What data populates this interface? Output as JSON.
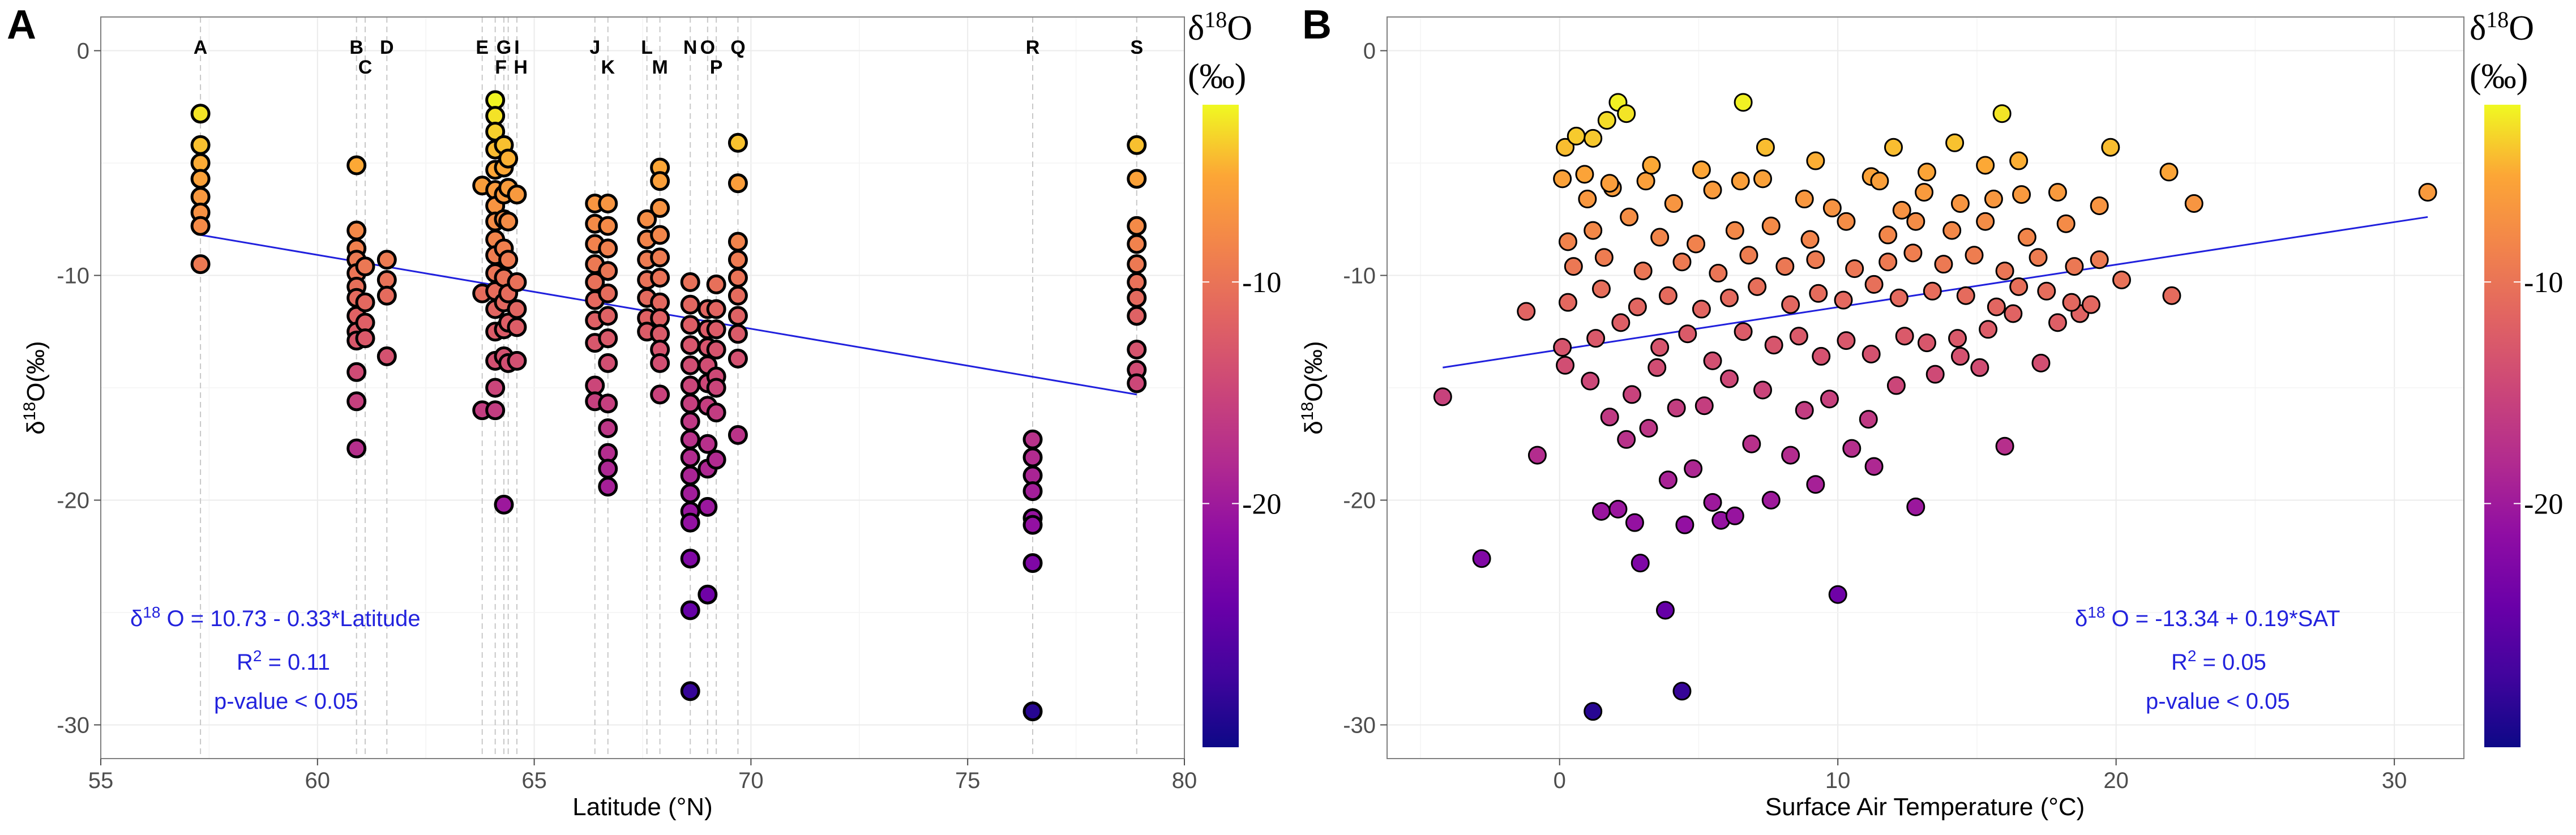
{
  "chart_data": [
    {
      "panel": "A",
      "type": "scatter",
      "xlabel": "Latitude (°N)",
      "ylabel": "δ18O(‰)",
      "xlim": [
        55,
        80
      ],
      "ylim": [
        -31.5,
        1.5
      ],
      "xticks": [
        55,
        60,
        65,
        70,
        75,
        80
      ],
      "yticks": [
        0,
        -10,
        -20,
        -30
      ],
      "colorbar": {
        "title": "δ18O",
        "unit": "(‰)",
        "range": [
          -31,
          -2
        ],
        "ticks": [
          -10,
          -20
        ]
      },
      "sites": [
        {
          "label": "A",
          "lat": 57.3,
          "values": [
            -2.8,
            -4.2,
            -5.0,
            -5.7,
            -6.5,
            -7.2,
            -7.8,
            -9.5
          ]
        },
        {
          "label": "B",
          "lat": 60.9,
          "values": [
            -5.1,
            -8.0,
            -8.8,
            -9.3,
            -9.9,
            -10.5,
            -11.0,
            -11.8,
            -12.5,
            -12.9,
            -14.3,
            -15.6,
            -17.7
          ]
        },
        {
          "label": "C",
          "lat": 61.1,
          "values": [
            -9.6,
            -11.2,
            -12.1,
            -12.8
          ]
        },
        {
          "label": "D",
          "lat": 61.6,
          "values": [
            -9.3,
            -10.2,
            -10.9,
            -13.6
          ]
        },
        {
          "label": "E",
          "lat": 63.8,
          "values": [
            -6.0,
            -10.8,
            -16.0
          ]
        },
        {
          "label": "F",
          "lat": 64.1,
          "values": [
            -2.2,
            -2.9,
            -3.6,
            -4.4,
            -5.3,
            -6.2,
            -6.9,
            -7.6,
            -8.4,
            -9.1,
            -9.9,
            -10.7,
            -11.5,
            -12.5,
            -13.8,
            -15.0,
            -16.0
          ]
        },
        {
          "label": "G",
          "lat": 64.3,
          "values": [
            -4.2,
            -5.2,
            -6.4,
            -7.5,
            -8.8,
            -10.1,
            -11.2,
            -12.4,
            -13.6,
            -20.2
          ]
        },
        {
          "label": "H",
          "lat": 64.4,
          "values": [
            -4.8,
            -6.1,
            -7.6,
            -9.3,
            -10.8,
            -12.1,
            -13.9
          ]
        },
        {
          "label": "I",
          "lat": 64.6,
          "values": [
            -6.4,
            -10.3,
            -11.5,
            -12.3,
            -13.8
          ]
        },
        {
          "label": "J",
          "lat": 66.4,
          "values": [
            -6.8,
            -7.7,
            -8.6,
            -9.5,
            -10.3,
            -11.1,
            -12.0,
            -13.0,
            -14.9,
            -15.6
          ]
        },
        {
          "label": "K",
          "lat": 66.7,
          "values": [
            -6.8,
            -7.8,
            -8.8,
            -9.8,
            -10.8,
            -11.8,
            -12.8,
            -13.9,
            -15.7,
            -16.8,
            -17.9,
            -18.6,
            -19.4
          ]
        },
        {
          "label": "L",
          "lat": 67.6,
          "values": [
            -7.5,
            -8.4,
            -9.3,
            -10.2,
            -11.0,
            -11.9,
            -12.5
          ]
        },
        {
          "label": "M",
          "lat": 67.9,
          "values": [
            -5.2,
            -5.8,
            -7.0,
            -8.2,
            -9.2,
            -10.1,
            -11.2,
            -11.9,
            -12.6,
            -13.3,
            -13.9,
            -15.3
          ]
        },
        {
          "label": "N",
          "lat": 68.6,
          "values": [
            -10.3,
            -11.3,
            -12.2,
            -13.1,
            -14.0,
            -14.9,
            -15.7,
            -16.5,
            -17.3,
            -18.1,
            -18.9,
            -19.7,
            -20.5,
            -21.0,
            -22.6,
            -24.9,
            -28.5
          ]
        },
        {
          "label": "O",
          "lat": 69.0,
          "values": [
            -11.5,
            -12.4,
            -13.2,
            -14.0,
            -14.8,
            -15.8,
            -17.5,
            -18.6,
            -20.3,
            -24.2
          ]
        },
        {
          "label": "P",
          "lat": 69.2,
          "values": [
            -10.4,
            -11.5,
            -12.4,
            -13.3,
            -14.5,
            -15.0,
            -16.1,
            -18.2
          ]
        },
        {
          "label": "Q",
          "lat": 69.7,
          "values": [
            -4.1,
            -5.9,
            -8.5,
            -9.3,
            -10.1,
            -10.9,
            -11.8,
            -12.6,
            -13.7,
            -17.1
          ]
        },
        {
          "label": "R",
          "lat": 76.5,
          "values": [
            -17.3,
            -18.1,
            -18.9,
            -19.6,
            -20.8,
            -21.1,
            -22.8,
            -29.4
          ]
        },
        {
          "label": "S",
          "lat": 78.9,
          "values": [
            -4.2,
            -5.7,
            -7.8,
            -8.6,
            -9.5,
            -10.3,
            -11.0,
            -11.8,
            -13.3,
            -14.2,
            -14.8
          ]
        }
      ],
      "regression": {
        "x": [
          57.3,
          78.9
        ],
        "y": [
          -8.2,
          -15.3
        ]
      },
      "annotations": [
        "δ18O = 10.73 - 0.33*Latitude",
        "R2 = 0.11",
        "p-value < 0.05"
      ]
    },
    {
      "panel": "B",
      "type": "scatter",
      "xlabel": "Surface Air Temperature (°C)",
      "ylabel": "δ18O(‰)",
      "xlim": [
        -6.2,
        32.5
      ],
      "ylim": [
        -31.5,
        1.5
      ],
      "xticks": [
        0,
        10,
        20,
        30
      ],
      "yticks": [
        0,
        -10,
        -20,
        -30
      ],
      "colorbar": {
        "title": "δ18O",
        "unit": "(‰)",
        "range": [
          -31,
          -2
        ],
        "ticks": [
          -10,
          -20
        ]
      },
      "regression": {
        "x": [
          -4.2,
          31.2
        ],
        "y": [
          -14.1,
          -7.4
        ]
      },
      "points": [
        [
          1.2,
          -29.4
        ],
        [
          4.4,
          -28.5
        ],
        [
          3.8,
          -24.9
        ],
        [
          10.0,
          -24.2
        ],
        [
          -2.8,
          -22.6
        ],
        [
          2.9,
          -22.8
        ],
        [
          -0.8,
          -18.0
        ],
        [
          1.5,
          -20.5
        ],
        [
          2.1,
          -20.4
        ],
        [
          2.7,
          -21.0
        ],
        [
          3.9,
          -19.1
        ],
        [
          4.5,
          -21.1
        ],
        [
          5.5,
          -20.1
        ],
        [
          5.8,
          -20.9
        ],
        [
          6.3,
          -20.7
        ],
        [
          7.6,
          -20.0
        ],
        [
          9.2,
          -19.3
        ],
        [
          12.8,
          -20.3
        ],
        [
          16.0,
          -17.6
        ],
        [
          1.8,
          -16.3
        ],
        [
          2.4,
          -17.3
        ],
        [
          3.2,
          -16.8
        ],
        [
          4.8,
          -18.6
        ],
        [
          6.9,
          -17.5
        ],
        [
          8.3,
          -18.0
        ],
        [
          10.5,
          -17.7
        ],
        [
          11.3,
          -18.5
        ],
        [
          -4.2,
          -15.4
        ],
        [
          0.2,
          -14.0
        ],
        [
          1.1,
          -14.7
        ],
        [
          2.6,
          -15.3
        ],
        [
          3.5,
          -14.1
        ],
        [
          4.2,
          -15.9
        ],
        [
          5.2,
          -15.8
        ],
        [
          6.1,
          -14.6
        ],
        [
          7.3,
          -15.1
        ],
        [
          8.8,
          -16.0
        ],
        [
          9.7,
          -15.5
        ],
        [
          11.1,
          -16.4
        ],
        [
          12.1,
          -14.9
        ],
        [
          13.5,
          -14.4
        ],
        [
          14.4,
          -13.6
        ],
        [
          15.1,
          -14.1
        ],
        [
          17.3,
          -13.9
        ],
        [
          0.1,
          -13.2
        ],
        [
          1.3,
          -12.8
        ],
        [
          2.2,
          -12.1
        ],
        [
          3.6,
          -13.2
        ],
        [
          4.6,
          -12.6
        ],
        [
          5.5,
          -13.8
        ],
        [
          6.6,
          -12.5
        ],
        [
          7.7,
          -13.1
        ],
        [
          8.6,
          -12.7
        ],
        [
          9.4,
          -13.6
        ],
        [
          10.3,
          -12.9
        ],
        [
          11.2,
          -13.5
        ],
        [
          12.4,
          -12.7
        ],
        [
          13.2,
          -13.0
        ],
        [
          14.3,
          -12.8
        ],
        [
          15.4,
          -12.4
        ],
        [
          16.3,
          -11.7
        ],
        [
          17.9,
          -12.1
        ],
        [
          18.7,
          -11.7
        ],
        [
          -1.2,
          -11.6
        ],
        [
          0.3,
          -11.2
        ],
        [
          1.5,
          -10.6
        ],
        [
          2.8,
          -11.4
        ],
        [
          3.9,
          -10.9
        ],
        [
          5.1,
          -11.5
        ],
        [
          6.1,
          -11.0
        ],
        [
          7.1,
          -10.5
        ],
        [
          8.3,
          -11.3
        ],
        [
          9.3,
          -10.8
        ],
        [
          10.2,
          -11.1
        ],
        [
          11.3,
          -10.4
        ],
        [
          12.2,
          -11.0
        ],
        [
          13.4,
          -10.7
        ],
        [
          14.6,
          -10.9
        ],
        [
          15.7,
          -11.4
        ],
        [
          16.5,
          -10.5
        ],
        [
          17.5,
          -10.7
        ],
        [
          18.4,
          -11.2
        ],
        [
          19.1,
          -11.3
        ],
        [
          20.2,
          -10.2
        ],
        [
          22.0,
          -10.9
        ],
        [
          0.5,
          -9.6
        ],
        [
          1.6,
          -9.2
        ],
        [
          3.0,
          -9.8
        ],
        [
          4.4,
          -9.4
        ],
        [
          5.7,
          -9.9
        ],
        [
          6.8,
          -9.1
        ],
        [
          8.1,
          -9.6
        ],
        [
          9.2,
          -9.3
        ],
        [
          10.6,
          -9.7
        ],
        [
          11.8,
          -9.4
        ],
        [
          12.7,
          -9.0
        ],
        [
          13.8,
          -9.5
        ],
        [
          14.9,
          -9.1
        ],
        [
          16.0,
          -9.8
        ],
        [
          17.2,
          -9.2
        ],
        [
          18.5,
          -9.6
        ],
        [
          19.4,
          -9.3
        ],
        [
          0.3,
          -8.5
        ],
        [
          1.2,
          -8.0
        ],
        [
          2.5,
          -7.4
        ],
        [
          3.6,
          -8.3
        ],
        [
          4.9,
          -8.6
        ],
        [
          6.3,
          -8.0
        ],
        [
          7.6,
          -7.8
        ],
        [
          9.0,
          -8.4
        ],
        [
          10.3,
          -7.6
        ],
        [
          11.8,
          -8.2
        ],
        [
          12.8,
          -7.6
        ],
        [
          14.1,
          -8.0
        ],
        [
          15.3,
          -7.6
        ],
        [
          16.8,
          -8.3
        ],
        [
          18.2,
          -7.7
        ],
        [
          1.0,
          -6.6
        ],
        [
          1.9,
          -6.1
        ],
        [
          3.1,
          -5.8
        ],
        [
          4.1,
          -6.8
        ],
        [
          5.5,
          -6.2
        ],
        [
          6.5,
          -5.8
        ],
        [
          7.3,
          -5.7
        ],
        [
          8.8,
          -6.6
        ],
        [
          9.8,
          -7.0
        ],
        [
          11.2,
          -5.6
        ],
        [
          12.3,
          -7.1
        ],
        [
          13.1,
          -6.3
        ],
        [
          14.4,
          -6.8
        ],
        [
          15.6,
          -6.6
        ],
        [
          16.6,
          -6.4
        ],
        [
          17.9,
          -6.3
        ],
        [
          19.4,
          -6.9
        ],
        [
          21.9,
          -5.4
        ],
        [
          22.8,
          -6.8
        ],
        [
          31.2,
          -6.3
        ],
        [
          0.1,
          -5.7
        ],
        [
          0.9,
          -5.5
        ],
        [
          1.8,
          -5.9
        ],
        [
          3.3,
          -5.1
        ],
        [
          5.1,
          -5.3
        ],
        [
          9.2,
          -4.9
        ],
        [
          11.5,
          -5.8
        ],
        [
          13.2,
          -5.4
        ],
        [
          15.3,
          -5.1
        ],
        [
          16.5,
          -4.9
        ],
        [
          0.2,
          -4.3
        ],
        [
          0.6,
          -3.8
        ],
        [
          1.2,
          -3.9
        ],
        [
          1.7,
          -3.1
        ],
        [
          2.1,
          -2.3
        ],
        [
          2.4,
          -2.8
        ],
        [
          7.4,
          -4.3
        ],
        [
          12.0,
          -4.3
        ],
        [
          14.2,
          -4.1
        ],
        [
          15.9,
          -2.8
        ],
        [
          19.8,
          -4.3
        ],
        [
          6.6,
          -2.3
        ]
      ],
      "annotations": [
        "δ18O = -13.34 + 0.19*SAT",
        "R2 = 0.05",
        "p-value < 0.05"
      ]
    }
  ],
  "colors": {
    "regression_line": "#2020dd",
    "grid": "#ebebeb",
    "axis": "#7f7f7f",
    "site_line": "#c8c8c8"
  }
}
